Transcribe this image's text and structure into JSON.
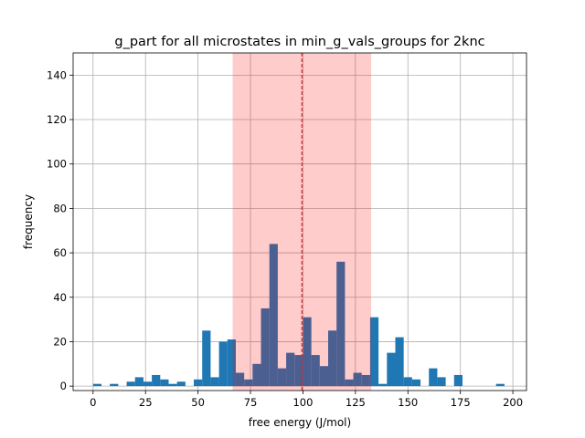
{
  "chart_data": {
    "type": "bar",
    "title": "g_part for all microstates in min_g_vals_groups for 2knc",
    "xlabel": "free energy (J/mol)",
    "ylabel": "frequency",
    "xlim": [
      -9.5,
      206.5
    ],
    "ylim": [
      -2,
      150
    ],
    "grid": true,
    "xticks": [
      0,
      25,
      50,
      75,
      100,
      125,
      150,
      175,
      200
    ],
    "yticks": [
      0,
      20,
      40,
      60,
      80,
      100,
      120,
      140
    ],
    "bin_width": 4,
    "bins": [
      {
        "x": 0,
        "value": 1
      },
      {
        "x": 8,
        "value": 1
      },
      {
        "x": 16,
        "value": 2
      },
      {
        "x": 20,
        "value": 4
      },
      {
        "x": 24,
        "value": 2
      },
      {
        "x": 28,
        "value": 5
      },
      {
        "x": 32,
        "value": 3
      },
      {
        "x": 36,
        "value": 1
      },
      {
        "x": 40,
        "value": 2
      },
      {
        "x": 48,
        "value": 3
      },
      {
        "x": 52,
        "value": 25
      },
      {
        "x": 56,
        "value": 4
      },
      {
        "x": 60,
        "value": 20
      },
      {
        "x": 64,
        "value": 21
      },
      {
        "x": 68,
        "value": 6
      },
      {
        "x": 72,
        "value": 3
      },
      {
        "x": 76,
        "value": 10
      },
      {
        "x": 80,
        "value": 35
      },
      {
        "x": 84,
        "value": 64
      },
      {
        "x": 88,
        "value": 8
      },
      {
        "x": 92,
        "value": 15
      },
      {
        "x": 96,
        "value": 14
      },
      {
        "x": 100,
        "value": 31
      },
      {
        "x": 104,
        "value": 14
      },
      {
        "x": 108,
        "value": 9
      },
      {
        "x": 112,
        "value": 25
      },
      {
        "x": 116,
        "value": 56
      },
      {
        "x": 120,
        "value": 3
      },
      {
        "x": 124,
        "value": 6
      },
      {
        "x": 128,
        "value": 5
      },
      {
        "x": 132,
        "value": 31
      },
      {
        "x": 136,
        "value": 1
      },
      {
        "x": 140,
        "value": 15
      },
      {
        "x": 144,
        "value": 22
      },
      {
        "x": 148,
        "value": 4
      },
      {
        "x": 152,
        "value": 3
      },
      {
        "x": 160,
        "value": 8
      },
      {
        "x": 164,
        "value": 4
      },
      {
        "x": 172,
        "value": 5
      },
      {
        "x": 192,
        "value": 1
      }
    ],
    "bar_color": "#1f77b4",
    "shaded_region": {
      "x0": 66.5,
      "x1": 132.5,
      "color": "#ff0000",
      "opacity": 0.2
    },
    "reference_line": {
      "x": 99.5,
      "color": "#d62728",
      "style": "dashed"
    }
  }
}
